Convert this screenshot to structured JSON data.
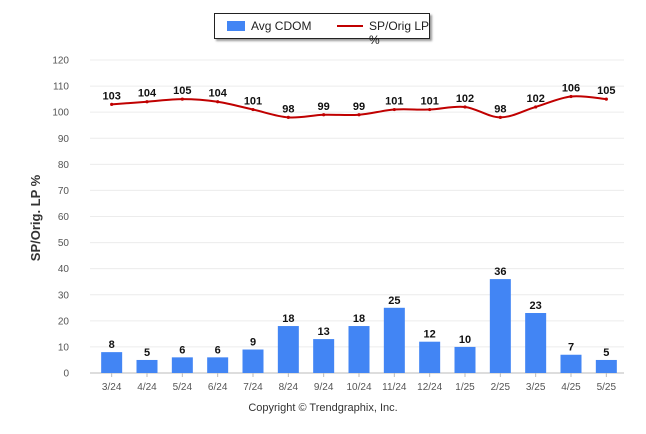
{
  "chart_data": {
    "type": "bar",
    "categories": [
      "3/24",
      "4/24",
      "5/24",
      "6/24",
      "7/24",
      "8/24",
      "9/24",
      "10/24",
      "11/24",
      "12/24",
      "1/25",
      "2/25",
      "3/25",
      "4/25",
      "5/25"
    ],
    "series": [
      {
        "name": "Avg CDOM",
        "type": "bar",
        "values": [
          8,
          5,
          6,
          6,
          9,
          18,
          13,
          18,
          25,
          12,
          10,
          36,
          23,
          7,
          5
        ]
      },
      {
        "name": "SP/Orig LP %",
        "type": "line",
        "values": [
          103,
          104,
          105,
          104,
          101,
          98,
          99,
          99,
          101,
          101,
          102,
          98,
          102,
          106,
          105
        ]
      }
    ],
    "ylabel": "SP/Orig. LP %",
    "xlabel": "",
    "ylim": [
      0,
      120
    ],
    "yticks": [
      0,
      10,
      20,
      30,
      40,
      50,
      60,
      70,
      80,
      90,
      100,
      110,
      120
    ],
    "grid": true,
    "legend": "top-center"
  },
  "colors": {
    "bar": "#4285f4",
    "line": "#c00000"
  },
  "footer": {
    "copyright": "Copyright © Trendgraphix, Inc."
  }
}
